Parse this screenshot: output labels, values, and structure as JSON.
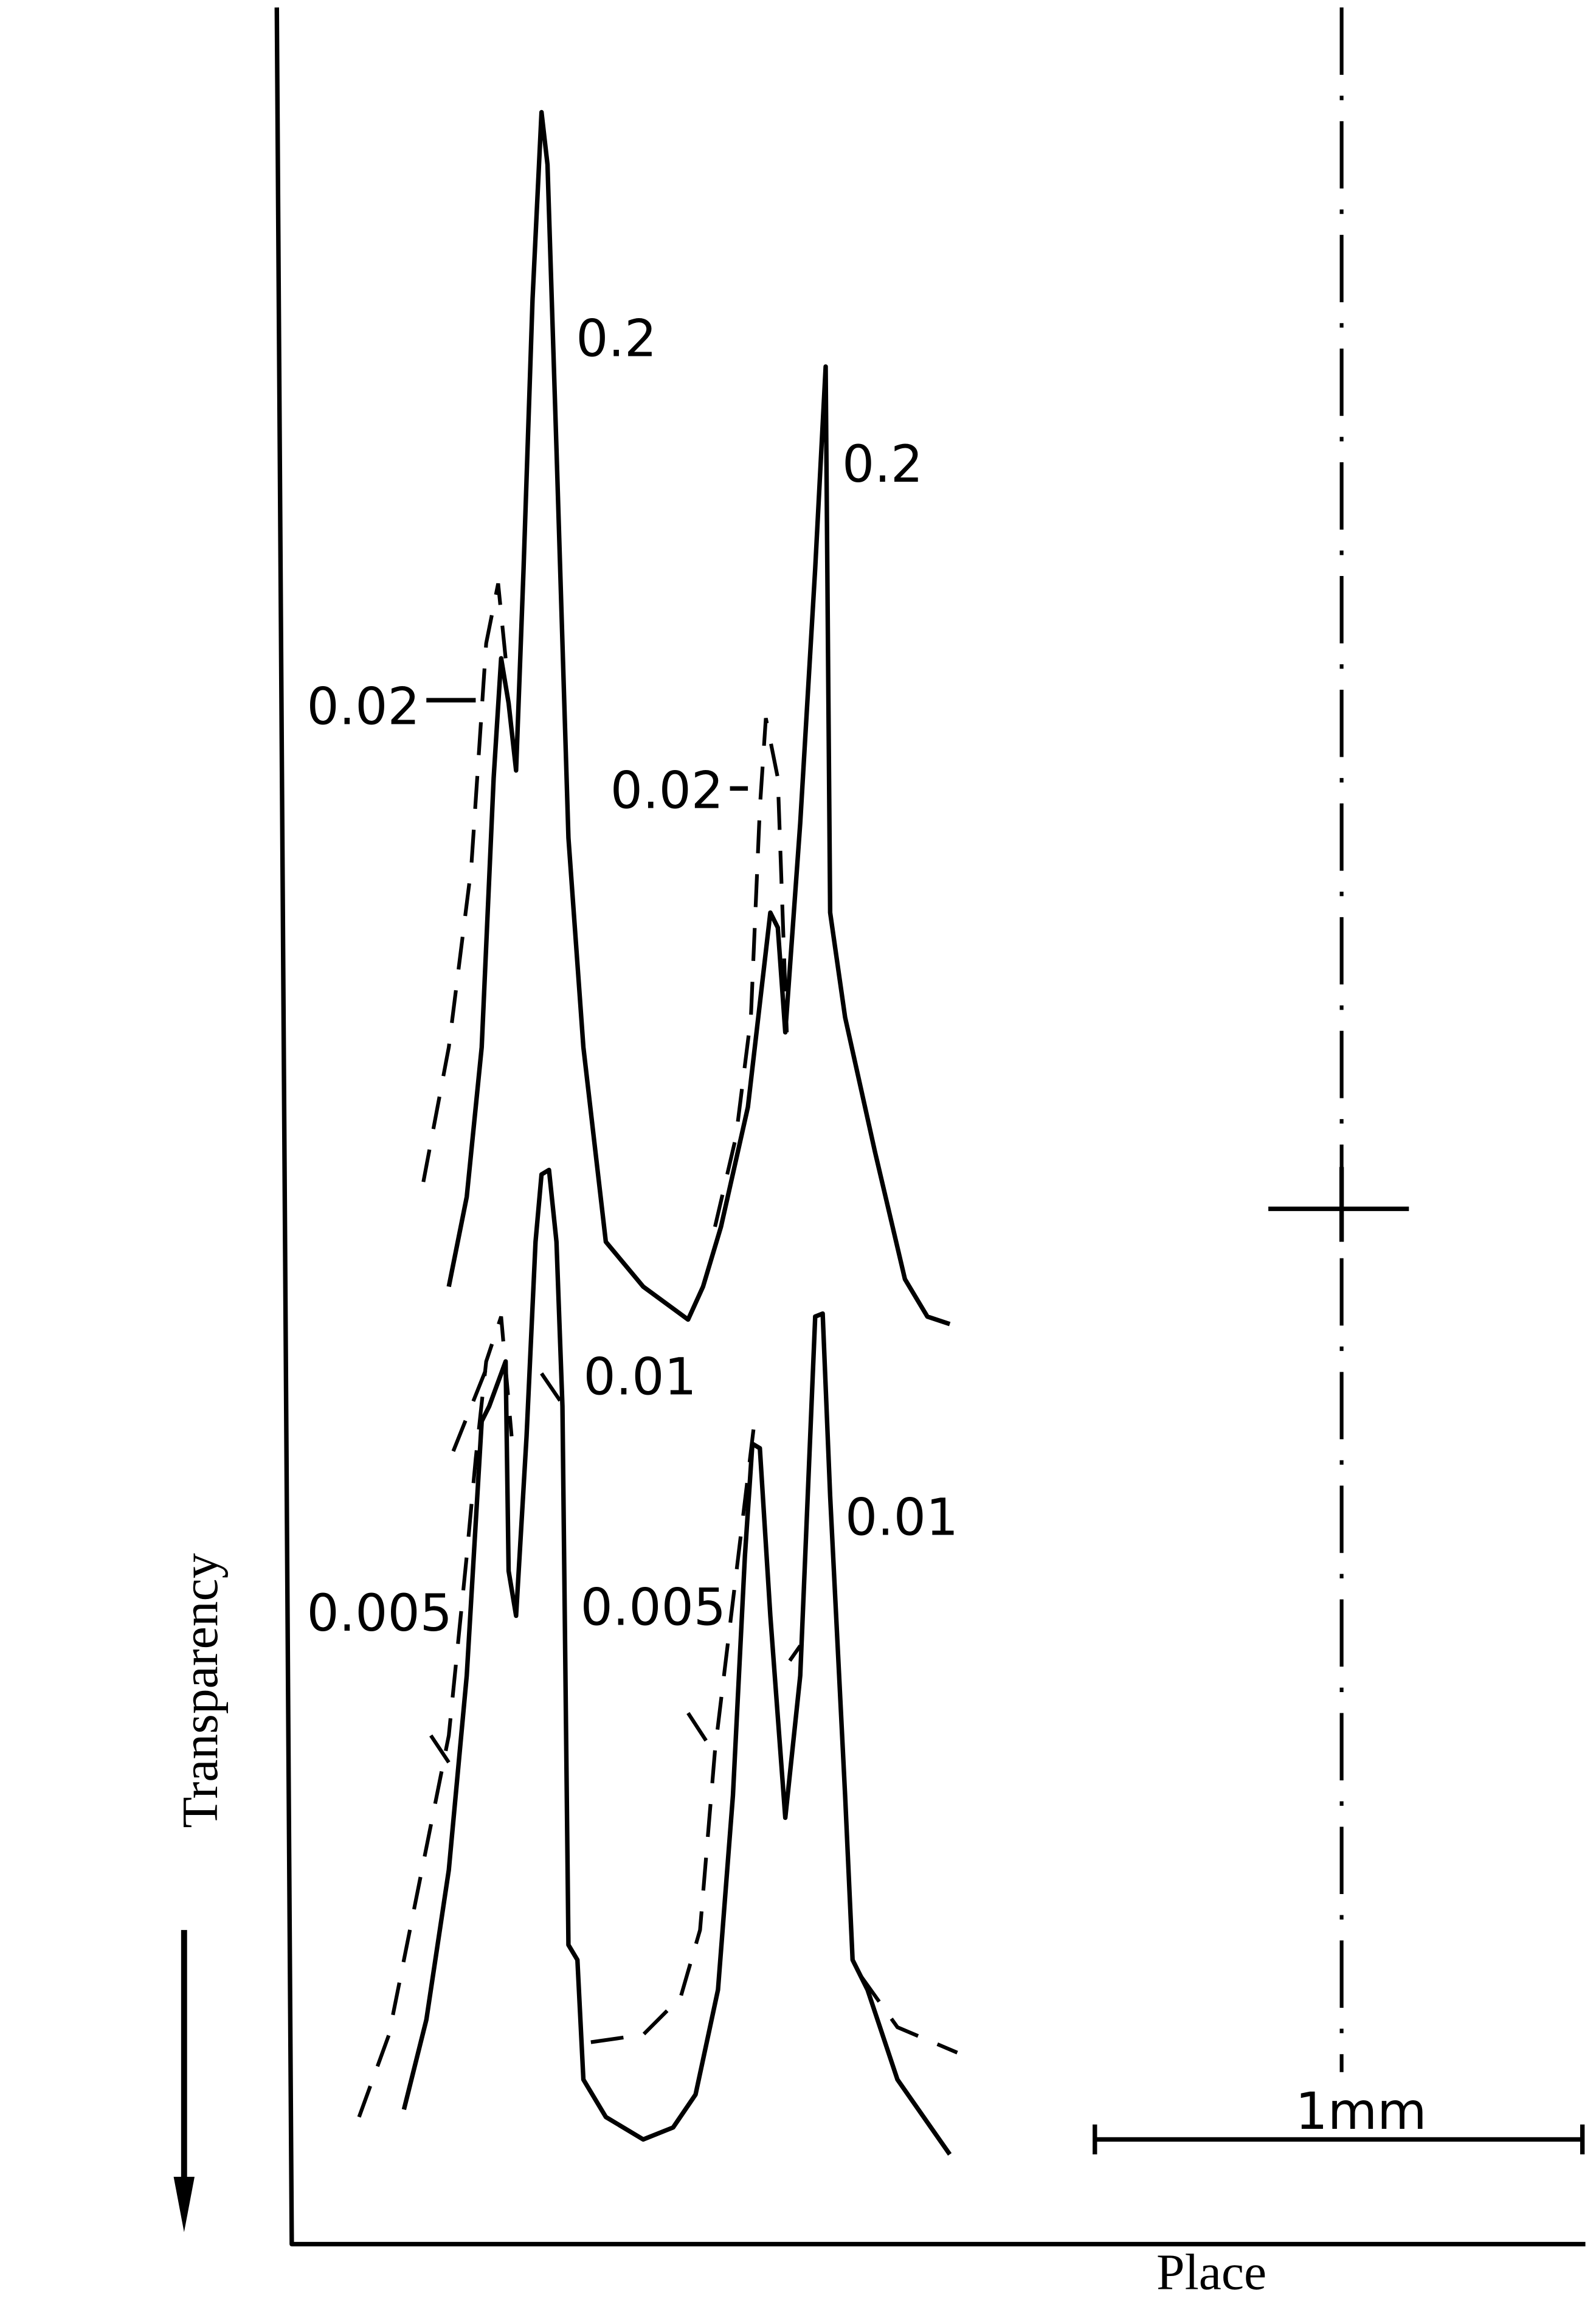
{
  "axes": {
    "y_label": "Transparency",
    "x_label": "Place"
  },
  "scale_bar": {
    "label": "1mm"
  },
  "curve_labels": [
    "0.2",
    "0.2",
    "0.02",
    "0.02",
    "0.01",
    "0.01",
    "0.005",
    "0.005"
  ]
}
